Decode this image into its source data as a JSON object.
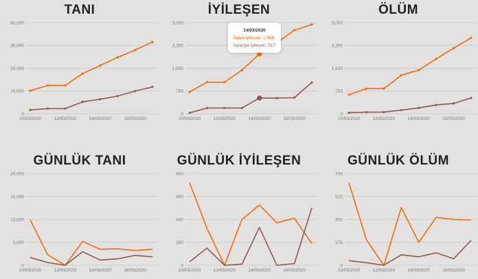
{
  "colors": {
    "italy": "#f26b0f",
    "spain": "#8a5a54",
    "grid": "#c8c7c5",
    "background": "#e3e2e0"
  },
  "chart_data": [
    {
      "type": "line",
      "title": "TANI",
      "x": [
        "10/03/2020",
        "11/03/2020",
        "12/03/2020",
        "13/03/2020",
        "14/03/2020",
        "15/03/2020",
        "16/03/2020",
        "17/03/2020"
      ],
      "x_tick_labels": [
        "10/03/2020",
        "12/03/2020",
        "14/03/2020",
        "16/03/2020"
      ],
      "y_tick_labels": [
        "0",
        "10,000",
        "20,000",
        "30,000",
        "40,000"
      ],
      "ylim": [
        0,
        40000
      ],
      "series": [
        {
          "color": "#f26b0f",
          "values": [
            10150,
            12460,
            12460,
            17660,
            21160,
            24750,
            27980,
            31510
          ]
        },
        {
          "color": "#8a5a54",
          "values": [
            1670,
            2280,
            2280,
            5230,
            6390,
            7800,
            9940,
            11800
          ]
        }
      ]
    },
    {
      "type": "line",
      "title": "İYİLEŞEN",
      "x": [
        "10/03/2020",
        "11/03/2020",
        "12/03/2020",
        "13/03/2020",
        "14/03/2020",
        "15/03/2020",
        "16/03/2020",
        "17/03/2020"
      ],
      "x_tick_labels": [
        "10/03/2020",
        "12/03/2020",
        "14/03/2020",
        "16/03/2020"
      ],
      "y_tick_labels": [
        "0",
        "750",
        "1,500",
        "2,250",
        "3,000"
      ],
      "ylim": [
        0,
        3000
      ],
      "series": [
        {
          "color": "#f26b0f",
          "values": [
            720,
            1040,
            1040,
            1440,
            1966,
            2340,
            2750,
            2940
          ]
        },
        {
          "color": "#8a5a54",
          "values": [
            30,
            190,
            190,
            190,
            517,
            517,
            530,
            1030
          ]
        }
      ],
      "tooltip": {
        "date": "14/03/2020",
        "line_a": "İtalya İyileşen: 1,966",
        "line_b": "İspanya İyileşen: 517"
      }
    },
    {
      "type": "line",
      "title": "ÖLÜM",
      "x": [
        "10/03/2020",
        "11/03/2020",
        "12/03/2020",
        "13/03/2020",
        "14/03/2020",
        "15/03/2020",
        "16/03/2020",
        "17/03/2020"
      ],
      "x_tick_labels": [
        "10/03/2020",
        "12/03/2020",
        "14/03/2020",
        "16/03/2020"
      ],
      "y_tick_labels": [
        "0",
        "750",
        "1,500",
        "2,250",
        "3,000"
      ],
      "ylim": [
        0,
        3000
      ],
      "series": [
        {
          "color": "#f26b0f",
          "values": [
            630,
            830,
            830,
            1270,
            1440,
            1810,
            2160,
            2500
          ]
        },
        {
          "color": "#8a5a54",
          "values": [
            35,
            55,
            55,
            120,
            195,
            290,
            340,
            520
          ]
        }
      ]
    },
    {
      "type": "line",
      "title": "GÜNLÜK TANI",
      "x": [
        "10/03/2020",
        "11/03/2020",
        "12/03/2020",
        "13/03/2020",
        "14/03/2020",
        "15/03/2020",
        "16/03/2020",
        "17/03/2020"
      ],
      "x_tick_labels": [
        "10/03/2020",
        "12/03/2020",
        "14/03/2020",
        "16/03/2020"
      ],
      "y_tick_labels": [
        "0",
        "5,000",
        "10,000",
        "15,000",
        "20,000"
      ],
      "ylim": [
        0,
        20000
      ],
      "series": [
        {
          "color": "#f26b0f",
          "values": [
            9900,
            2300,
            0,
            5200,
            3500,
            3600,
            3200,
            3500
          ]
        },
        {
          "color": "#8a5a54",
          "values": [
            1700,
            600,
            0,
            2950,
            1150,
            1400,
            2150,
            1850
          ]
        }
      ]
    },
    {
      "type": "line",
      "title": "GÜNLÜK İYİLEŞEN",
      "x": [
        "10/03/2020",
        "11/03/2020",
        "12/03/2020",
        "13/03/2020",
        "14/03/2020",
        "15/03/2020",
        "16/03/2020",
        "17/03/2020"
      ],
      "x_tick_labels": [
        "10/03/2020",
        "12/03/2020",
        "14/03/2020",
        "16/03/2020"
      ],
      "y_tick_labels": [
        "0",
        "200",
        "400",
        "600",
        "800"
      ],
      "ylim": [
        0,
        800
      ],
      "series": [
        {
          "color": "#f26b0f",
          "values": [
            720,
            320,
            0,
            400,
            525,
            370,
            410,
            190
          ]
        },
        {
          "color": "#8a5a54",
          "values": [
            30,
            150,
            0,
            10,
            330,
            0,
            15,
            500
          ]
        }
      ]
    },
    {
      "type": "line",
      "title": "GÜNLÜK ÖLÜM",
      "x": [
        "10/03/2020",
        "11/03/2020",
        "12/03/2020",
        "13/03/2020",
        "14/03/2020",
        "15/03/2020",
        "16/03/2020",
        "17/03/2020"
      ],
      "x_tick_labels": [
        "10/03/2020",
        "12/03/2020",
        "14/03/2020",
        "16/03/2020"
      ],
      "y_tick_labels": [
        "0",
        "175",
        "350",
        "525",
        "700"
      ],
      "ylim": [
        0,
        700
      ],
      "series": [
        {
          "color": "#f26b0f",
          "values": [
            630,
            195,
            0,
            440,
            175,
            365,
            350,
            345
          ]
        },
        {
          "color": "#8a5a54",
          "values": [
            35,
            20,
            0,
            80,
            65,
            95,
            50,
            190
          ]
        }
      ]
    }
  ]
}
